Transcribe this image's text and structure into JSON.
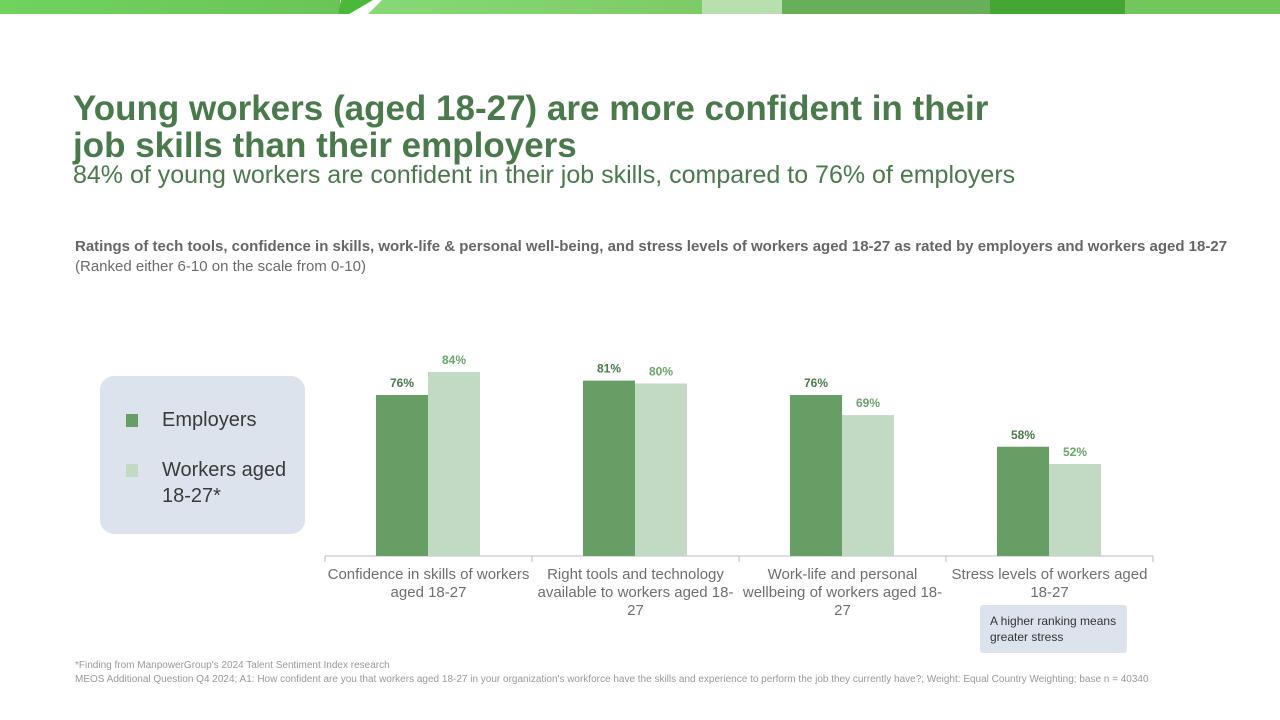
{
  "colors": {
    "employers": "#669e66",
    "workers": "#c2d9c4",
    "title": "#4a7a4c"
  },
  "header": {
    "title": "Young workers (aged 18-27) are more confident in their job skills than their employers",
    "subtitle": "84% of young workers are confident in their job skills, compared to 76% of employers"
  },
  "chart_title": {
    "bold": "Ratings of tech tools, confidence in skills, work-life & personal well-being, and stress levels of workers aged 18-27 as rated by employers and workers aged 18-27",
    "normal": " (Ranked either 6-10 on the scale from 0-10)"
  },
  "legend": {
    "employers": "Employers",
    "workers": "Workers aged 18-27*"
  },
  "note": "A higher ranking means greater stress",
  "chart_data": {
    "type": "bar",
    "categories": [
      "Confidence in skills of workers aged 18-27",
      "Right tools and technology available to workers aged 18-27",
      "Work-life and personal wellbeing of workers aged 18-27",
      "Stress levels of workers aged 18-27"
    ],
    "series": [
      {
        "name": "Employers",
        "values": [
          76,
          81,
          76,
          58
        ],
        "labels": [
          "76%",
          "81%",
          "76%",
          "58%"
        ]
      },
      {
        "name": "Workers aged 18-27*",
        "values": [
          84,
          80,
          69,
          52
        ],
        "labels": [
          "84%",
          "80%",
          "69%",
          "52%"
        ]
      }
    ],
    "ylim": [
      20,
      100
    ],
    "grid": false,
    "legend": "left"
  },
  "footnotes": [
    "*Finding from ManpowerGroup's 2024 Talent Sentiment Index research",
    "MEOS Additional Question Q4 2024; A1: How confident are you that workers aged 18-27 in your organization's workforce have the skills and experience to perform the job they currently have?; Weight: Equal Country Weighting; base n = 40340"
  ]
}
